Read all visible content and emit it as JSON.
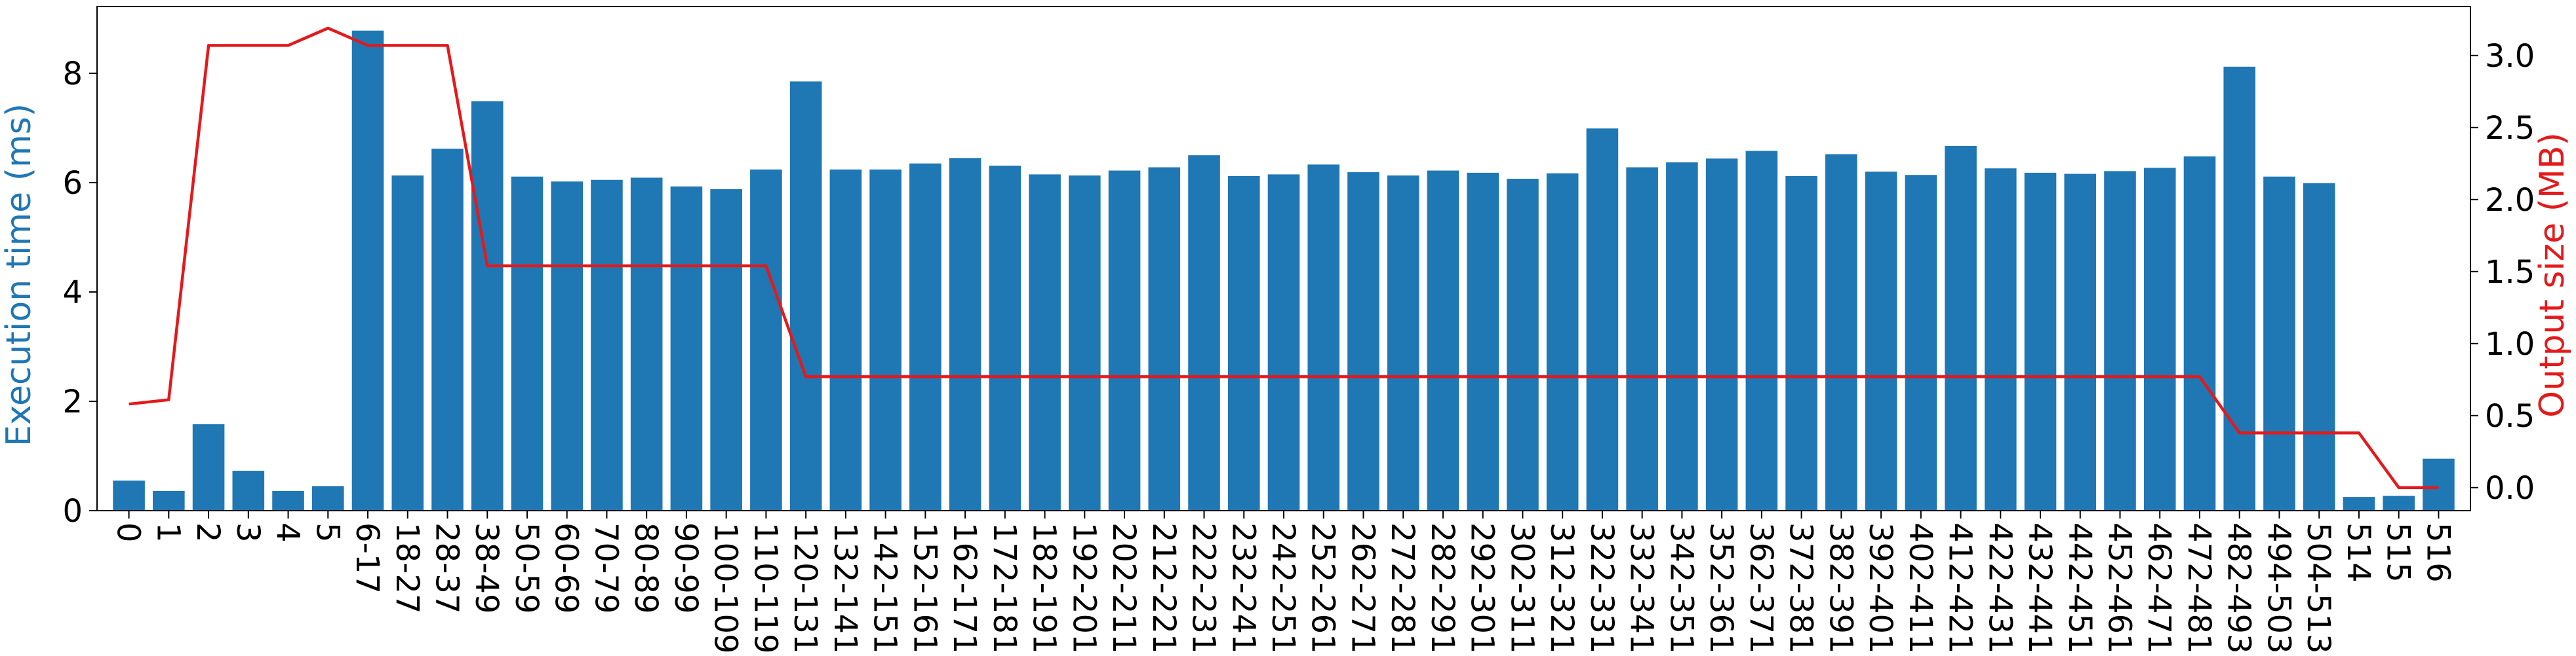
{
  "chart_data": {
    "type": "bar",
    "categories": [
      "0",
      "1",
      "2",
      "3",
      "4",
      "5",
      "6-17",
      "18-27",
      "28-37",
      "38-49",
      "50-59",
      "60-69",
      "70-79",
      "80-89",
      "90-99",
      "100-109",
      "110-119",
      "120-131",
      "132-141",
      "142-151",
      "152-161",
      "162-171",
      "172-181",
      "182-191",
      "192-201",
      "202-211",
      "212-221",
      "222-231",
      "232-241",
      "242-251",
      "252-261",
      "262-271",
      "272-281",
      "282-291",
      "292-301",
      "302-311",
      "312-321",
      "322-331",
      "332-341",
      "342-351",
      "352-361",
      "362-371",
      "372-381",
      "382-391",
      "392-401",
      "402-411",
      "412-421",
      "422-431",
      "432-441",
      "442-451",
      "452-461",
      "462-471",
      "472-481",
      "482-493",
      "494-503",
      "504-513",
      "514",
      "515",
      "516"
    ],
    "series": [
      {
        "name": "Execution time (ms)",
        "type": "bar",
        "axis": "left",
        "color": "#1f77b4",
        "values": [
          0.55,
          0.36,
          1.58,
          0.73,
          0.36,
          0.45,
          8.78,
          6.13,
          6.62,
          7.49,
          6.11,
          6.02,
          6.05,
          6.09,
          5.93,
          5.88,
          6.24,
          7.85,
          6.24,
          6.24,
          6.35,
          6.45,
          6.31,
          6.15,
          6.13,
          6.22,
          6.28,
          6.5,
          6.12,
          6.15,
          6.33,
          6.19,
          6.13,
          6.22,
          6.18,
          6.07,
          6.17,
          6.99,
          6.28,
          6.37,
          6.44,
          6.58,
          6.12,
          6.52,
          6.2,
          6.14,
          6.67,
          6.26,
          6.18,
          6.16,
          6.21,
          6.27,
          6.48,
          8.12,
          6.11,
          5.99,
          0.25,
          0.27,
          0.95
        ]
      },
      {
        "name": "Output size (MB)",
        "type": "line",
        "axis": "right",
        "color": "#e31a1c",
        "values": [
          0.58,
          0.61,
          3.07,
          3.07,
          3.07,
          3.19,
          3.07,
          3.07,
          3.07,
          1.54,
          1.54,
          1.54,
          1.54,
          1.54,
          1.54,
          1.54,
          1.54,
          0.77,
          0.77,
          0.77,
          0.77,
          0.77,
          0.77,
          0.77,
          0.77,
          0.77,
          0.77,
          0.77,
          0.77,
          0.77,
          0.77,
          0.77,
          0.77,
          0.77,
          0.77,
          0.77,
          0.77,
          0.77,
          0.77,
          0.77,
          0.77,
          0.77,
          0.77,
          0.77,
          0.77,
          0.77,
          0.77,
          0.77,
          0.77,
          0.77,
          0.77,
          0.77,
          0.77,
          0.38,
          0.38,
          0.38,
          0.38,
          0.0,
          0.0
        ]
      }
    ],
    "ylabel": "Execution time (ms)",
    "ylabel_color": "#1f77b4",
    "y2label": "Output size (MB)",
    "y2label_color": "#e31a1c",
    "ylim": [
      0,
      9.22
    ],
    "y2lim": [
      -0.16,
      3.34
    ],
    "yticks": [
      "0",
      "2",
      "4",
      "6",
      "8"
    ],
    "y2ticks": [
      "0.0",
      "0.5",
      "1.0",
      "1.5",
      "2.0",
      "2.5",
      "3.0"
    ],
    "grid": false,
    "legend": "none"
  }
}
